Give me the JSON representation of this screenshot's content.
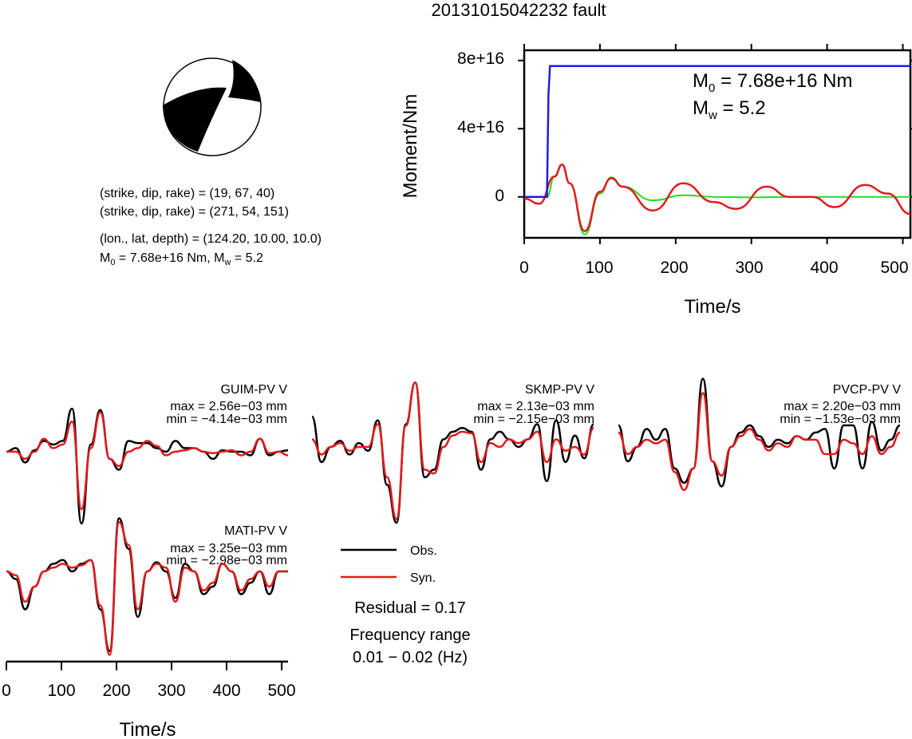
{
  "title": "20131015042232 fault",
  "info": {
    "line1": "(strike, dip, rake) = (19, 67, 40)",
    "line2": "(strike, dip, rake) = (271, 54, 151)",
    "line3": "(lon., lat, depth) = (124.20, 10.00, 10.0)",
    "line4_m0": "M",
    "line4_m0_sub": "0",
    "line4_mid": " = 7.68e+16 Nm, M",
    "line4_mw_sub": "w",
    "line4_end": " = 5.2"
  },
  "moment_plot": {
    "ylabel": "Moment/Nm",
    "xlabel": "Time/s",
    "xticks": [
      "0",
      "100",
      "200",
      "300",
      "400",
      "500"
    ],
    "yticks": [
      "8e+16",
      "4e+16",
      "0"
    ],
    "m0_label": "M",
    "m0_sub": "0",
    "m0_value": " = 7.68e+16 Nm",
    "mw_label": "M",
    "mw_sub": "w",
    "mw_value": " = 5.2"
  },
  "waveforms": {
    "xlabel": "Time/s",
    "xticks": [
      "0",
      "100",
      "200",
      "300",
      "400",
      "500"
    ],
    "stations": [
      {
        "name": "GUIM-PV V",
        "max": "max = 2.56e−03 mm",
        "min": "min = −4.14e−03 mm"
      },
      {
        "name": "SKMP-PV V",
        "max": "max = 2.13e−03 mm",
        "min": "min = −2.15e−03 mm"
      },
      {
        "name": "PVCP-PV V",
        "max": "max = 2.20e−03 mm",
        "min": "min = −1.53e−03 mm"
      },
      {
        "name": "MATI-PV V",
        "max": "max = 3.25e−03 mm",
        "min": "min = −2.98e−03 mm"
      }
    ]
  },
  "legend": {
    "obs": "Obs.",
    "syn": "Syn.",
    "residual": "Residual = 0.17",
    "freq_label": "Frequency range",
    "freq_value": "0.01 − 0.02 (Hz)"
  },
  "colors": {
    "obs": "#000000",
    "syn": "#e31a1c",
    "moment": "#1f1fd6",
    "stf": "#22dd22"
  },
  "chart_data": [
    {
      "type": "line",
      "title": "20131015042232 fault",
      "xlabel": "Time/s",
      "ylabel": "Moment/Nm",
      "xlim": [
        0,
        510
      ],
      "ylim": [
        -2.4e+16,
        8.6e+16
      ],
      "series": [
        {
          "name": "moment",
          "x": [
            0,
            30,
            32,
            34,
            510
          ],
          "y": [
            0,
            0,
            6e+16,
            7.68e+16,
            7.68e+16
          ]
        },
        {
          "name": "observed",
          "x": [
            0,
            20,
            40,
            50,
            60,
            80,
            100,
            115,
            130,
            170,
            210,
            250,
            280,
            320,
            350,
            380,
            410,
            450,
            480,
            510
          ],
          "y": [
            -1000000000000000.0,
            -4000000000000000.0,
            1.2e+16,
            1.9e+16,
            8000000000000000.0,
            -2e+16,
            3000000000000000.0,
            1.1e+16,
            6000000000000000.0,
            -8000000000000000.0,
            8000000000000000.0,
            -3000000000000000.0,
            -7000000000000000.0,
            6000000000000000.0,
            0,
            0,
            -6000000000000000.0,
            7000000000000000.0,
            2000000000000000.0,
            -1e+16
          ]
        },
        {
          "name": "synthetic",
          "x": [
            0,
            30,
            40,
            50,
            60,
            80,
            100,
            115,
            130,
            170,
            210,
            250,
            300,
            350,
            400,
            450,
            510
          ],
          "y": [
            0,
            0,
            1.2e+16,
            1.9e+16,
            8000000000000000.0,
            -2.2e+16,
            2000000000000000.0,
            1.15e+16,
            6000000000000000.0,
            -2000000000000000.0,
            1000000000000000.0,
            0,
            -200000000000000.0,
            0,
            0,
            0,
            0
          ]
        }
      ]
    }
  ]
}
